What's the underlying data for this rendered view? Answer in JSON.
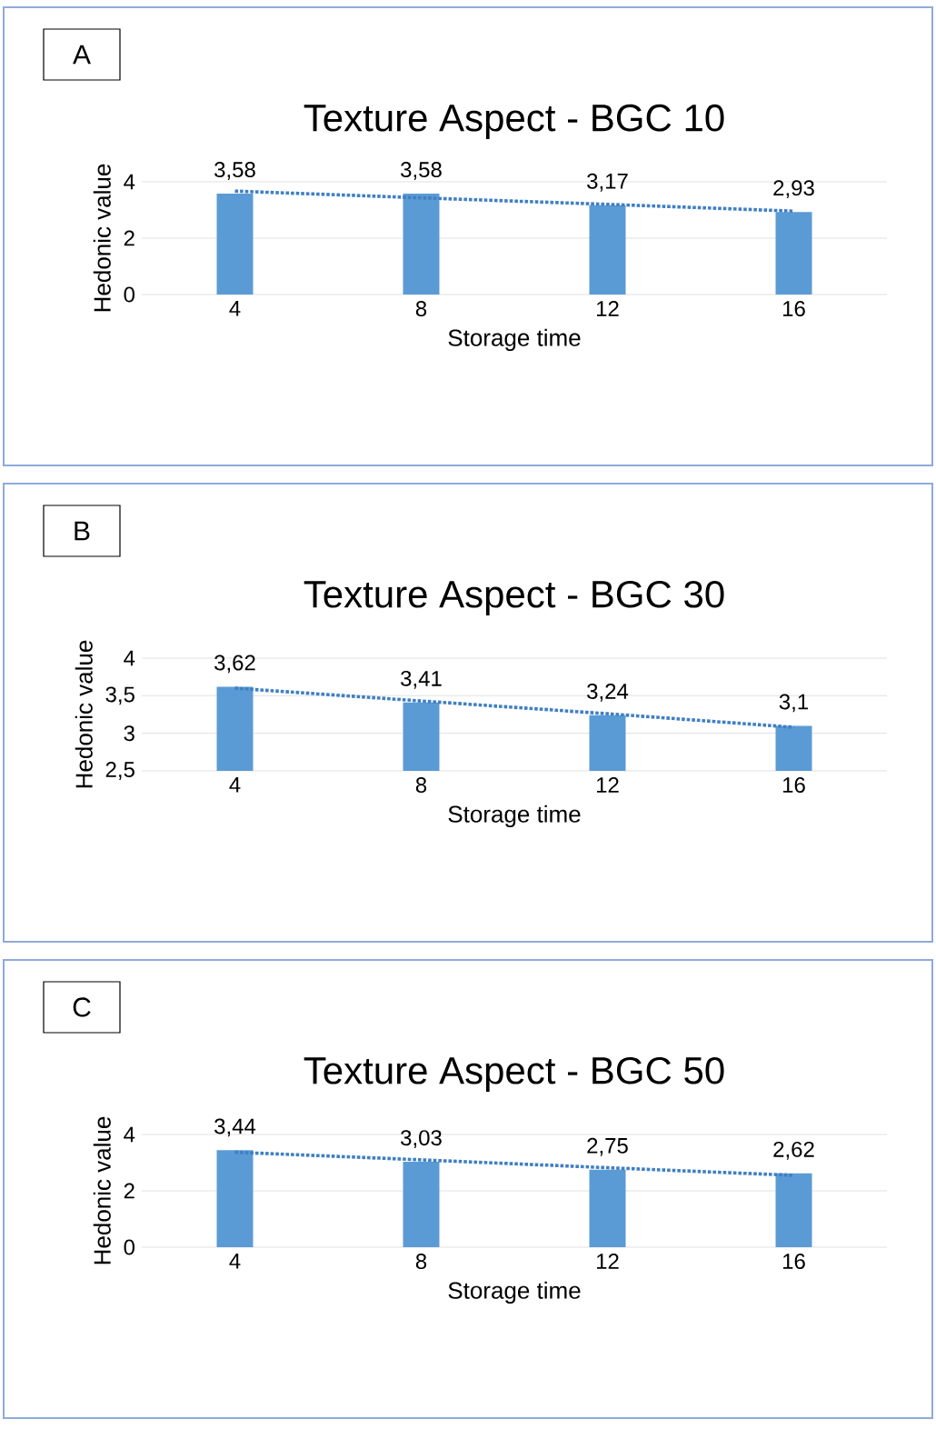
{
  "chart_data": [
    {
      "type": "bar",
      "title": "Texture Aspect - BGC 10",
      "xlabel": "Storage time",
      "ylabel": "Hedonic value",
      "annotations": [
        "A"
      ],
      "categories": [
        "4",
        "8",
        "12",
        "16"
      ],
      "ylim": [
        0,
        4
      ],
      "yticks": [
        0,
        2,
        4
      ],
      "grid": "y",
      "series": [
        {
          "color": "#5b9bd5",
          "values": [
            3.58,
            3.58,
            3.17,
            2.93
          ],
          "value_labels": [
            "3,58",
            "3,58",
            "3,17",
            "2,93"
          ]
        },
        {
          "type": "line",
          "color": "#3f7fc4",
          "line_style": "dotted",
          "marker": "none",
          "values": [
            3.67,
            3.43,
            3.2,
            2.96
          ]
        }
      ]
    },
    {
      "type": "bar",
      "title": "Texture Aspect - BGC 30",
      "xlabel": "Storage time",
      "ylabel": "Hedonic value",
      "annotations": [
        "B"
      ],
      "categories": [
        "4",
        "8",
        "12",
        "16"
      ],
      "ylim": [
        2.5,
        4
      ],
      "yticks": [
        {
          "value": 2.5,
          "label": "2,5"
        },
        3,
        {
          "value": 3.5,
          "label": "3,5"
        },
        4
      ],
      "grid": "y",
      "series": [
        {
          "color": "#5b9bd5",
          "values": [
            3.62,
            3.41,
            3.24,
            3.1
          ],
          "value_labels": [
            "3,62",
            "3,41",
            "3,24",
            "3,1"
          ]
        },
        {
          "type": "line",
          "color": "#3f7fc4",
          "line_style": "dotted",
          "marker": "none",
          "values": [
            3.6,
            3.43,
            3.26,
            3.08
          ]
        }
      ]
    },
    {
      "type": "bar",
      "title": "Texture Aspect - BGC 50",
      "xlabel": "Storage time",
      "ylabel": "Hedonic value",
      "annotations": [
        "C"
      ],
      "categories": [
        "4",
        "8",
        "12",
        "16"
      ],
      "ylim": [
        0,
        4
      ],
      "yticks": [
        0,
        2,
        4
      ],
      "grid": "y",
      "series": [
        {
          "color": "#5b9bd5",
          "values": [
            3.44,
            3.03,
            2.75,
            2.62
          ],
          "value_labels": [
            "3,44",
            "3,03",
            "2,75",
            "2,62"
          ]
        },
        {
          "type": "line",
          "color": "#3f7fc4",
          "line_style": "dotted",
          "marker": "none",
          "values": [
            3.37,
            3.1,
            2.82,
            2.55
          ]
        }
      ]
    }
  ]
}
